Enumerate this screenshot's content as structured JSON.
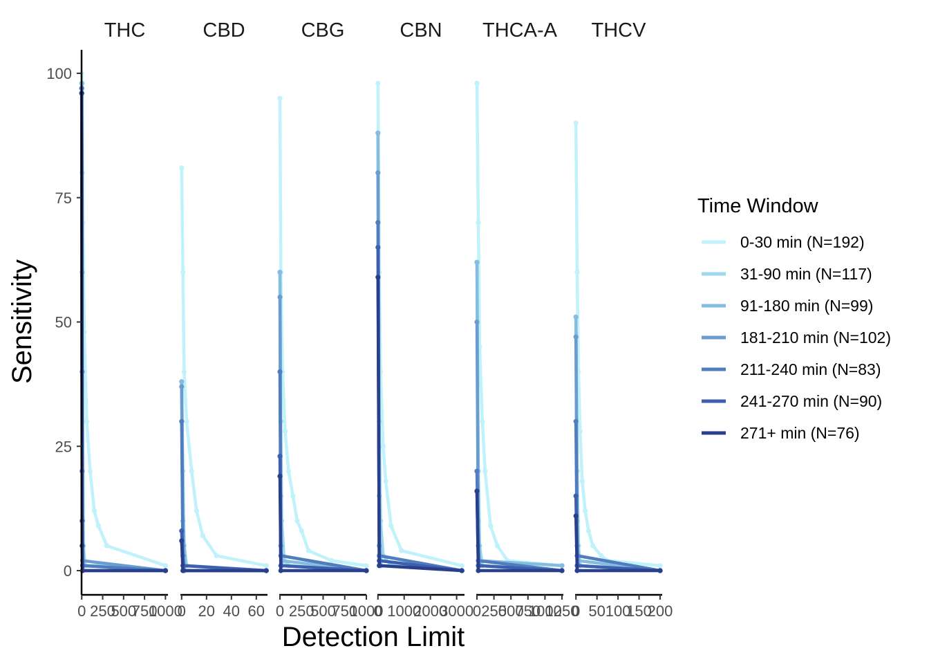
{
  "chart_data": {
    "type": "line",
    "title": "",
    "xlabel": "Detection Limit",
    "ylabel": "Sensitivity",
    "ylim": [
      0,
      100
    ],
    "yticks": [
      0,
      25,
      50,
      75,
      100
    ],
    "grid": false,
    "legend": {
      "title": "Time Window",
      "position": "right"
    },
    "series": [
      {
        "name": "0-30 min (N=192)",
        "color": "#bff2fb"
      },
      {
        "name": "31-90 min (N=117)",
        "color": "#9cd9ee"
      },
      {
        "name": "91-180 min (N=99)",
        "color": "#84bde0"
      },
      {
        "name": "181-210 min (N=102)",
        "color": "#6a9ccf"
      },
      {
        "name": "211-240 min (N=83)",
        "color": "#4f7dbe"
      },
      {
        "name": "241-270 min (N=90)",
        "color": "#3e5fad"
      },
      {
        "name": "271+ min (N=76)",
        "color": "#293f8c"
      }
    ],
    "facets": [
      {
        "label": "THC",
        "xlim": [
          -2,
          1030
        ],
        "xticks": [
          0,
          250,
          500,
          750,
          1000
        ],
        "xtick_labels": [
          "0",
          "250",
          "500",
          "750",
          "1000"
        ],
        "curves": [
          [
            [
              0,
              100
            ],
            [
              5,
              98
            ],
            [
              15,
              70
            ],
            [
              30,
              48
            ],
            [
              60,
              30
            ],
            [
              100,
              20
            ],
            [
              150,
              12
            ],
            [
              200,
              9
            ],
            [
              300,
              5
            ],
            [
              1000,
              1
            ]
          ],
          [
            [
              0,
              98
            ],
            [
              5,
              80
            ],
            [
              10,
              40
            ],
            [
              20,
              5
            ],
            [
              40,
              1
            ],
            [
              200,
              1
            ],
            [
              1000,
              0
            ]
          ],
          [
            [
              0,
              98
            ],
            [
              5,
              60
            ],
            [
              10,
              10
            ],
            [
              20,
              1
            ],
            [
              1000,
              0
            ]
          ],
          [
            [
              0,
              97
            ],
            [
              5,
              40
            ],
            [
              10,
              2
            ],
            [
              1000,
              0
            ]
          ],
          [
            [
              0,
              97
            ],
            [
              5,
              20
            ],
            [
              10,
              1
            ],
            [
              1000,
              0
            ]
          ],
          [
            [
              0,
              96
            ],
            [
              5,
              10
            ],
            [
              10,
              0
            ],
            [
              1000,
              0
            ]
          ],
          [
            [
              0,
              96
            ],
            [
              5,
              5
            ],
            [
              10,
              0
            ],
            [
              1000,
              0
            ]
          ]
        ]
      },
      {
        "label": "CBD",
        "xlim": [
          -1,
          69
        ],
        "xticks": [
          0,
          20,
          40,
          60
        ],
        "xtick_labels": [
          "0",
          "20",
          "40",
          "60"
        ],
        "curves": [
          [
            [
              0,
              81
            ],
            [
              1,
              60
            ],
            [
              2,
              40
            ],
            [
              4,
              30
            ],
            [
              8,
              20
            ],
            [
              12,
              12
            ],
            [
              17,
              7
            ],
            [
              28,
              3
            ],
            [
              68,
              1
            ]
          ],
          [
            [
              0,
              38
            ],
            [
              1,
              20
            ],
            [
              2,
              5
            ],
            [
              4,
              1
            ],
            [
              68,
              0
            ]
          ],
          [
            [
              0,
              38
            ],
            [
              1,
              10
            ],
            [
              3,
              1
            ],
            [
              68,
              0
            ]
          ],
          [
            [
              0,
              37
            ],
            [
              1,
              5
            ],
            [
              2,
              0
            ],
            [
              68,
              0
            ]
          ],
          [
            [
              0,
              30
            ],
            [
              1,
              3
            ],
            [
              2,
              0
            ],
            [
              68,
              0
            ]
          ],
          [
            [
              0,
              8
            ],
            [
              1,
              1
            ],
            [
              68,
              0
            ]
          ],
          [
            [
              0,
              6
            ],
            [
              1,
              0
            ],
            [
              68,
              0
            ]
          ]
        ]
      },
      {
        "label": "CBG",
        "xlim": [
          -8,
          1000
        ],
        "xticks": [
          0,
          250,
          500,
          750,
          1000
        ],
        "xtick_labels": [
          "0",
          "250",
          "500",
          "750",
          "1000"
        ],
        "curves": [
          [
            [
              0,
              95
            ],
            [
              10,
              60
            ],
            [
              30,
              40
            ],
            [
              60,
              28
            ],
            [
              100,
              20
            ],
            [
              150,
              15
            ],
            [
              200,
              10
            ],
            [
              250,
              8
            ],
            [
              330,
              4
            ],
            [
              600,
              2
            ],
            [
              1000,
              1
            ]
          ],
          [
            [
              0,
              60
            ],
            [
              10,
              30
            ],
            [
              20,
              10
            ],
            [
              50,
              2
            ],
            [
              100,
              1
            ],
            [
              1000,
              0
            ]
          ],
          [
            [
              0,
              60
            ],
            [
              10,
              15
            ],
            [
              20,
              2
            ],
            [
              1000,
              0
            ]
          ],
          [
            [
              0,
              55
            ],
            [
              10,
              5
            ],
            [
              20,
              1
            ],
            [
              1000,
              0
            ]
          ],
          [
            [
              0,
              40
            ],
            [
              10,
              3
            ],
            [
              1000,
              0
            ]
          ],
          [
            [
              0,
              23
            ],
            [
              10,
              1
            ],
            [
              1000,
              0
            ]
          ],
          [
            [
              0,
              19
            ],
            [
              10,
              0
            ],
            [
              1000,
              0
            ]
          ]
        ]
      },
      {
        "label": "CBN",
        "xlim": [
          -20,
          3300
        ],
        "xticks": [
          0,
          1000,
          2000,
          3000
        ],
        "xtick_labels": [
          "0",
          "1000",
          "2000",
          "3000"
        ],
        "curves": [
          [
            [
              0,
              98
            ],
            [
              50,
              60
            ],
            [
              100,
              40
            ],
            [
              200,
              25
            ],
            [
              300,
              18
            ],
            [
              500,
              9
            ],
            [
              900,
              4
            ],
            [
              3200,
              1
            ]
          ],
          [
            [
              0,
              88
            ],
            [
              50,
              30
            ],
            [
              100,
              10
            ],
            [
              200,
              3
            ],
            [
              500,
              1
            ],
            [
              3200,
              0
            ]
          ],
          [
            [
              0,
              88
            ],
            [
              50,
              15
            ],
            [
              100,
              2
            ],
            [
              3200,
              0
            ]
          ],
          [
            [
              0,
              80
            ],
            [
              50,
              5
            ],
            [
              100,
              1
            ],
            [
              3200,
              0
            ]
          ],
          [
            [
              0,
              70
            ],
            [
              50,
              3
            ],
            [
              3200,
              0
            ]
          ],
          [
            [
              0,
              65
            ],
            [
              50,
              2
            ],
            [
              3200,
              0
            ]
          ],
          [
            [
              0,
              59
            ],
            [
              50,
              1
            ],
            [
              3200,
              0
            ]
          ]
        ]
      },
      {
        "label": "THCA-A",
        "xlim": [
          -10,
          1270
        ],
        "xticks": [
          0,
          250,
          500,
          750,
          1000,
          1250
        ],
        "xtick_labels": [
          "0",
          "250",
          "500",
          "750",
          "1000",
          "1250"
        ],
        "curves": [
          [
            [
              0,
              98
            ],
            [
              20,
              70
            ],
            [
              40,
              45
            ],
            [
              80,
              30
            ],
            [
              120,
              20
            ],
            [
              200,
              9
            ],
            [
              300,
              5
            ],
            [
              450,
              2
            ],
            [
              1250,
              1
            ]
          ],
          [
            [
              0,
              62
            ],
            [
              20,
              20
            ],
            [
              40,
              5
            ],
            [
              80,
              1
            ],
            [
              1250,
              0
            ]
          ],
          [
            [
              0,
              62
            ],
            [
              20,
              10
            ],
            [
              40,
              2
            ],
            [
              1250,
              1
            ]
          ],
          [
            [
              0,
              50
            ],
            [
              20,
              5
            ],
            [
              40,
              1
            ],
            [
              1250,
              0
            ]
          ],
          [
            [
              0,
              20
            ],
            [
              20,
              2
            ],
            [
              1250,
              0
            ]
          ],
          [
            [
              0,
              16
            ],
            [
              20,
              1
            ],
            [
              1250,
              0
            ]
          ],
          [
            [
              0,
              16
            ],
            [
              20,
              0
            ],
            [
              1250,
              0
            ]
          ]
        ]
      },
      {
        "label": "THCV",
        "xlim": [
          -2,
          205
        ],
        "xticks": [
          0,
          50,
          100,
          150,
          200
        ],
        "xtick_labels": [
          "0",
          "50",
          "100",
          "150",
          "200"
        ],
        "curves": [
          [
            [
              0,
              90
            ],
            [
              3,
              60
            ],
            [
              6,
              40
            ],
            [
              10,
              28
            ],
            [
              15,
              18
            ],
            [
              22,
              12
            ],
            [
              30,
              8
            ],
            [
              40,
              5
            ],
            [
              60,
              3
            ],
            [
              75,
              2
            ],
            [
              200,
              1
            ]
          ],
          [
            [
              0,
              51
            ],
            [
              3,
              20
            ],
            [
              6,
              5
            ],
            [
              10,
              1
            ],
            [
              200,
              0
            ]
          ],
          [
            [
              0,
              51
            ],
            [
              3,
              10
            ],
            [
              6,
              2
            ],
            [
              200,
              0
            ]
          ],
          [
            [
              0,
              47
            ],
            [
              3,
              5
            ],
            [
              6,
              1
            ],
            [
              200,
              0
            ]
          ],
          [
            [
              0,
              30
            ],
            [
              3,
              3
            ],
            [
              200,
              0
            ]
          ],
          [
            [
              0,
              15
            ],
            [
              3,
              1
            ],
            [
              200,
              0
            ]
          ],
          [
            [
              0,
              11
            ],
            [
              3,
              0
            ],
            [
              200,
              0
            ]
          ]
        ]
      }
    ]
  }
}
